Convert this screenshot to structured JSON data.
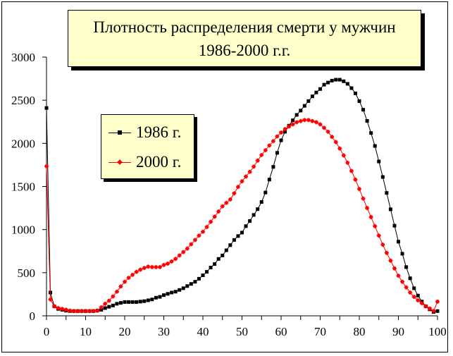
{
  "chart_data": {
    "type": "line",
    "title": [
      "Плотность распределения смерти у мужчин",
      "1986-2000 г.г."
    ],
    "xlabel": "",
    "ylabel": "",
    "xlim": [
      0,
      100
    ],
    "ylim": [
      0,
      3000
    ],
    "x_ticks": [
      0,
      10,
      20,
      30,
      40,
      50,
      60,
      70,
      80,
      90,
      100
    ],
    "y_ticks": [
      0,
      500,
      1000,
      1500,
      2000,
      2500,
      3000
    ],
    "grid": false,
    "legend_placement": "upper-left inside",
    "x": [
      0,
      1,
      2,
      3,
      4,
      5,
      6,
      7,
      8,
      9,
      10,
      11,
      12,
      13,
      14,
      15,
      16,
      17,
      18,
      19,
      20,
      21,
      22,
      23,
      24,
      25,
      26,
      27,
      28,
      29,
      30,
      31,
      32,
      33,
      34,
      35,
      36,
      37,
      38,
      39,
      40,
      41,
      42,
      43,
      44,
      45,
      46,
      47,
      48,
      49,
      50,
      51,
      52,
      53,
      54,
      55,
      56,
      57,
      58,
      59,
      60,
      61,
      62,
      63,
      64,
      65,
      66,
      67,
      68,
      69,
      70,
      71,
      72,
      73,
      74,
      75,
      76,
      77,
      78,
      79,
      80,
      81,
      82,
      83,
      84,
      85,
      86,
      87,
      88,
      89,
      90,
      91,
      92,
      93,
      94,
      95,
      96,
      97,
      98,
      99,
      100
    ],
    "series": [
      {
        "name": "1986 г.",
        "color": "#000000",
        "marker": "square",
        "values": [
          2410,
          270,
          110,
          80,
          70,
          60,
          55,
          55,
          55,
          55,
          55,
          55,
          55,
          60,
          70,
          90,
          105,
          120,
          140,
          150,
          160,
          160,
          160,
          160,
          165,
          170,
          180,
          190,
          210,
          220,
          240,
          255,
          270,
          280,
          300,
          320,
          345,
          370,
          395,
          430,
          470,
          510,
          560,
          600,
          660,
          700,
          760,
          820,
          880,
          925,
          965,
          1040,
          1100,
          1170,
          1237,
          1320,
          1430,
          1580,
          1727,
          1890,
          2035,
          2135,
          2205,
          2267,
          2330,
          2380,
          2435,
          2490,
          2545,
          2590,
          2630,
          2680,
          2705,
          2727,
          2738,
          2738,
          2720,
          2690,
          2640,
          2580,
          2490,
          2390,
          2260,
          2120,
          1970,
          1790,
          1610,
          1425,
          1235,
          1045,
          860,
          720,
          565,
          435,
          320,
          235,
          165,
          110,
          75,
          45,
          55
        ]
      },
      {
        "name": "2000 г.",
        "color": "#ff0000",
        "marker": "star",
        "values": [
          1735,
          190,
          110,
          90,
          80,
          70,
          60,
          55,
          55,
          55,
          55,
          55,
          55,
          60,
          98,
          140,
          175,
          225,
          280,
          340,
          395,
          440,
          475,
          510,
          535,
          555,
          570,
          565,
          565,
          565,
          590,
          605,
          630,
          660,
          700,
          740,
          780,
          830,
          880,
          930,
          975,
          1030,
          1090,
          1150,
          1210,
          1270,
          1310,
          1350,
          1420,
          1495,
          1560,
          1615,
          1670,
          1730,
          1800,
          1865,
          1920,
          1975,
          2025,
          2080,
          2125,
          2165,
          2195,
          2220,
          2245,
          2258,
          2270,
          2270,
          2258,
          2245,
          2220,
          2180,
          2135,
          2075,
          2015,
          1940,
          1860,
          1775,
          1680,
          1580,
          1470,
          1360,
          1250,
          1145,
          1040,
          930,
          825,
          730,
          640,
          550,
          465,
          395,
          330,
          270,
          220,
          180,
          145,
          110,
          85,
          55,
          165
        ]
      }
    ]
  }
}
